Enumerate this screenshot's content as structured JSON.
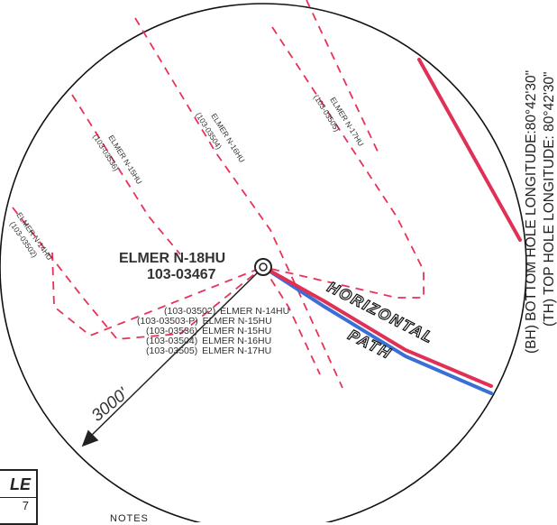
{
  "well": {
    "name": "ELMER N-18HU",
    "id": "103-03467"
  },
  "offset_wells": [
    {
      "id": "(103-03502)",
      "name": "ELMER N-14HU"
    },
    {
      "id": "(103-03503-P)",
      "name": "ELMER N-15HU"
    },
    {
      "id": "(103-03536)",
      "name": "ELMER N-15HU"
    },
    {
      "id": "(103-03504)",
      "name": "ELMER N-16HU"
    },
    {
      "id": "(103-03505)",
      "name": "ELMER N-17HU"
    }
  ],
  "lease_labels": [
    {
      "name": "ELMER N-14HU",
      "id": "(103-03502)"
    },
    {
      "name": "ELMER N-15HU",
      "id": "(103-03536)"
    },
    {
      "name": "ELMER N-16HU",
      "id": "(103-03504)"
    },
    {
      "name": "ELMER N-17HU",
      "id": "(103-03505)"
    }
  ],
  "path_label": {
    "line1": "HORIZONTAL",
    "line2": "PATH"
  },
  "radius_label": "3000'",
  "coordinates": {
    "bottom_hole": "(BH) BOTTOM HOLE LONGITUDE:80°42'30\"",
    "top_hole": "(TH) TOP HOLE LONGITUDE: 80°42'30\""
  },
  "legend": {
    "top": "LE",
    "bottom": "7"
  },
  "notes_label": "NOTES",
  "colors": {
    "lease_line": "#e8325a",
    "path_red": "#e03055",
    "path_blue": "#3a6fd8",
    "circle": "#111111"
  }
}
